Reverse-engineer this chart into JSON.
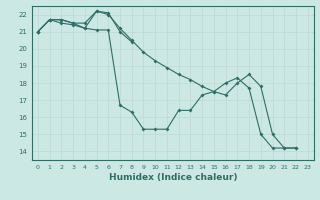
{
  "title": "",
  "xlabel": "Humidex (Indice chaleur)",
  "background_color": "#cce8e4",
  "grid_color": "#c0d8d4",
  "line_color": "#2d6e65",
  "xlim": [
    -0.5,
    23.5
  ],
  "ylim": [
    13.5,
    22.5
  ],
  "yticks": [
    14,
    15,
    16,
    17,
    18,
    19,
    20,
    21,
    22
  ],
  "xticks": [
    0,
    1,
    2,
    3,
    4,
    5,
    6,
    7,
    8,
    9,
    10,
    11,
    12,
    13,
    14,
    15,
    16,
    17,
    18,
    19,
    20,
    21,
    22,
    23
  ],
  "series1_x": [
    0,
    1,
    2,
    3,
    4,
    5,
    6,
    7,
    8
  ],
  "series1_y": [
    21.0,
    21.7,
    21.7,
    21.5,
    21.5,
    22.2,
    22.1,
    21.0,
    20.4
  ],
  "series2_x": [
    0,
    1,
    2,
    3,
    4,
    5,
    6,
    7,
    8,
    9,
    10,
    11,
    12,
    13,
    14,
    15,
    16,
    17,
    18,
    19,
    20,
    21,
    22
  ],
  "series2_y": [
    21.0,
    21.7,
    21.7,
    21.5,
    21.2,
    21.1,
    21.1,
    16.7,
    16.3,
    15.3,
    15.3,
    15.3,
    16.4,
    16.4,
    17.3,
    17.5,
    18.0,
    18.3,
    17.7,
    15.0,
    14.2,
    14.2,
    14.2
  ],
  "series3_x": [
    0,
    1,
    2,
    3,
    4,
    5,
    6,
    7,
    8,
    9,
    10,
    11,
    12,
    13,
    14,
    15,
    16,
    17,
    18,
    19,
    20,
    21,
    22
  ],
  "series3_y": [
    21.0,
    21.7,
    21.5,
    21.4,
    21.2,
    22.2,
    22.0,
    21.2,
    20.5,
    19.8,
    19.3,
    18.9,
    18.5,
    18.2,
    17.8,
    17.5,
    17.3,
    18.0,
    18.5,
    17.8,
    15.0,
    14.2,
    14.2
  ]
}
